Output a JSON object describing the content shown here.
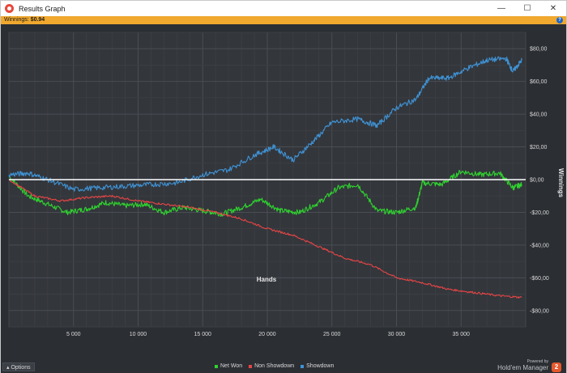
{
  "window": {
    "title": "Results Graph",
    "controls": {
      "minimize": "—",
      "maximize": "☐",
      "close": "✕"
    }
  },
  "infobar": {
    "label": "Winnings:",
    "value": "$0.94",
    "help_glyph": "?"
  },
  "chart_data": {
    "type": "line",
    "xlabel": "Hands",
    "ylabel": "Winnings",
    "xlim": [
      0,
      40000
    ],
    "ylim": [
      -90,
      90
    ],
    "x_ticks": [
      5000,
      10000,
      15000,
      20000,
      25000,
      30000,
      35000
    ],
    "x_tick_labels": [
      "5 000",
      "10 000",
      "15 000",
      "20 000",
      "25 000",
      "30 000",
      "35 000"
    ],
    "y_ticks": [
      80,
      60,
      40,
      20,
      0,
      -20,
      -40,
      -60,
      -80
    ],
    "y_tick_labels": [
      "$80,00",
      "$60,00",
      "$40,00",
      "$20,00",
      "$0,00",
      "-$20,00",
      "-$40,00",
      "-$60,00",
      "-$80,00"
    ],
    "grid": true,
    "zero_line_color": "#ffffff",
    "series": [
      {
        "name": "Net Won",
        "color": "#2fd12f",
        "x": [
          0,
          1500,
          3000,
          4500,
          6000,
          7500,
          9000,
          10500,
          12000,
          13500,
          15000,
          16500,
          18000,
          19500,
          21000,
          22500,
          24000,
          25500,
          27000,
          28500,
          30000,
          31500,
          32000,
          33500,
          35000,
          36500,
          38000,
          39000,
          39700
        ],
        "values": [
          2,
          -10,
          -15,
          -20,
          -18,
          -14,
          -16,
          -15,
          -20,
          -17,
          -19,
          -21,
          -17,
          -12,
          -19,
          -20,
          -14,
          -5,
          -3,
          -19,
          -20,
          -17,
          -2,
          -3,
          5,
          3,
          4,
          -5,
          -3
        ]
      },
      {
        "name": "Non Showdown",
        "color": "#e84545",
        "x": [
          0,
          2000,
          4000,
          6000,
          8000,
          10000,
          12000,
          14000,
          16000,
          18000,
          20000,
          22000,
          24000,
          26000,
          28000,
          30000,
          32000,
          34000,
          36000,
          38000,
          39700
        ],
        "values": [
          0,
          -10,
          -13,
          -11,
          -10,
          -13,
          -15,
          -17,
          -20,
          -24,
          -30,
          -34,
          -41,
          -48,
          -52,
          -60,
          -63,
          -67,
          -69,
          -71,
          -72
        ]
      },
      {
        "name": "Showdown",
        "color": "#3f93d6",
        "x": [
          0,
          1500,
          3000,
          5000,
          7000,
          9000,
          11000,
          13000,
          15000,
          17000,
          19000,
          20500,
          22000,
          23500,
          25000,
          27000,
          28500,
          30000,
          31500,
          32500,
          34000,
          35500,
          37000,
          38500,
          39000,
          39700
        ],
        "values": [
          3,
          4,
          0,
          -6,
          -5,
          -4,
          -3,
          -2,
          3,
          6,
          15,
          20,
          12,
          23,
          35,
          37,
          33,
          44,
          49,
          62,
          62,
          68,
          73,
          74,
          66,
          73
        ]
      }
    ],
    "legend_position": "bottom"
  },
  "bottombar": {
    "options_label": "Options",
    "legend": [
      {
        "name": "Net Won",
        "color": "#2fd12f"
      },
      {
        "name": "Non Showdown",
        "color": "#e84545"
      },
      {
        "name": "Showdown",
        "color": "#3f93d6"
      }
    ],
    "powered_by": "Powered by",
    "brand": "Hold'em Manager",
    "brand_badge": "2"
  }
}
